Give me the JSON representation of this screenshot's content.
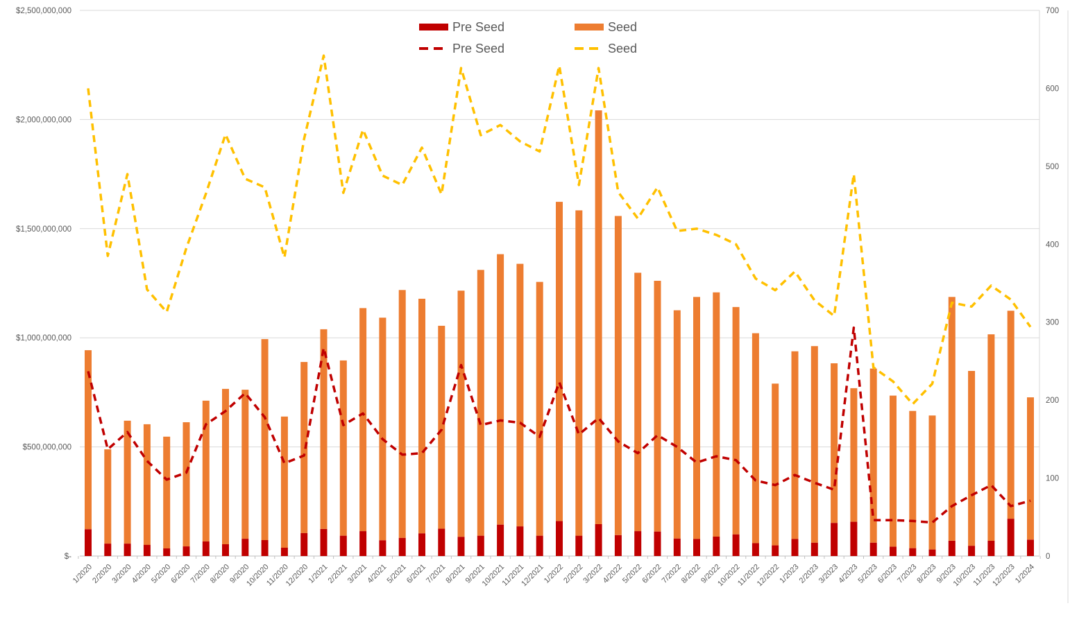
{
  "legend": {
    "items": [
      {
        "label": "Pre Seed",
        "type": "bar",
        "color": "#c00000"
      },
      {
        "label": "Seed",
        "type": "bar",
        "color": "#ed7d31"
      },
      {
        "label": "Pre Seed",
        "type": "line",
        "color": "#c00000"
      },
      {
        "label": "Seed",
        "type": "line",
        "color": "#ffc000"
      }
    ]
  },
  "colors": {
    "grid": "#d9d9d9",
    "axis": "#bfbfbf",
    "text": "#595959",
    "background": "#ffffff"
  },
  "chart_data": {
    "type": "combo",
    "title": "",
    "grid": true,
    "legend_position": "top-center",
    "categories": [
      "1/2020",
      "2/2020",
      "3/2020",
      "4/2020",
      "5/2020",
      "6/2020",
      "7/2020",
      "8/2020",
      "9/2020",
      "10/2020",
      "11/2020",
      "12/2020",
      "1/2021",
      "2/2021",
      "3/2021",
      "4/2021",
      "5/2021",
      "6/2021",
      "7/2021",
      "8/2021",
      "9/2021",
      "10/2021",
      "11/2021",
      "12/2021",
      "1/2022",
      "2/2022",
      "3/2022",
      "4/2022",
      "5/2022",
      "6/2022",
      "7/2022",
      "8/2022",
      "9/2022",
      "10/2022",
      "11/2022",
      "12/2022",
      "1/2023",
      "2/2023",
      "3/2023",
      "4/2023",
      "5/2023",
      "6/2023",
      "7/2023",
      "8/2023",
      "9/2023",
      "10/2023",
      "11/2023",
      "12/2023",
      "1/2024"
    ],
    "left_axis": {
      "unit": "USD",
      "min": 0,
      "max": 2500000000,
      "ticks": [
        {
          "v": 2500,
          "label": "$2,500,000,000"
        },
        {
          "v": 2000,
          "label": "$2,000,000,000"
        },
        {
          "v": 1500,
          "label": "$1,500,000,000"
        },
        {
          "v": 1000,
          "label": "$1,000,000,000"
        },
        {
          "v": 500,
          "label": "$500,000,000"
        },
        {
          "v": 0,
          "label": "$-"
        }
      ]
    },
    "right_axis": {
      "unit": "deal count",
      "min": 0,
      "max": 700,
      "ticks": [
        {
          "v": 700,
          "label": "700"
        },
        {
          "v": 600,
          "label": "600"
        },
        {
          "v": 500,
          "label": "500"
        },
        {
          "v": 400,
          "label": "400"
        },
        {
          "v": 300,
          "label": "300"
        },
        {
          "v": 200,
          "label": "200"
        },
        {
          "v": 100,
          "label": "100"
        },
        {
          "v": 0,
          "label": "0"
        }
      ]
    },
    "series": [
      {
        "name": "Pre Seed",
        "kind": "bar-stacked",
        "axis": "left",
        "unit": "USD millions",
        "color": "#c00000",
        "values": [
          123,
          57,
          57,
          51,
          35,
          44,
          67,
          54,
          79,
          73,
          38,
          105,
          124,
          93,
          114,
          72,
          83,
          104,
          125,
          88,
          93,
          144,
          136,
          93,
          160,
          93,
          146,
          96,
          114,
          112,
          80,
          78,
          89,
          99,
          59,
          49,
          78,
          61,
          152,
          157,
          61,
          43,
          36,
          30,
          70,
          47,
          70,
          171,
          75
        ]
      },
      {
        "name": "Seed",
        "kind": "bar-stacked",
        "axis": "left",
        "unit": "USD millions",
        "color": "#ed7d31",
        "values": [
          820,
          432,
          563,
          553,
          512,
          569,
          645,
          712,
          683,
          921,
          601,
          784,
          915,
          803,
          1022,
          1020,
          1136,
          1075,
          930,
          1128,
          1218,
          1239,
          1203,
          1163,
          1463,
          1491,
          1896,
          1462,
          1184,
          1149,
          1046,
          1109,
          1119,
          1042,
          962,
          741,
          860,
          901,
          731,
          612,
          798,
          692,
          629,
          614,
          1117,
          801,
          946,
          953,
          652
        ]
      },
      {
        "name": "Pre Seed",
        "kind": "line-dashed",
        "axis": "right",
        "unit": "deal count",
        "color": "#c00000",
        "values": [
          237,
          137,
          159,
          122,
          98,
          107,
          169,
          186,
          209,
          178,
          119,
          129,
          267,
          168,
          183,
          150,
          130,
          132,
          162,
          245,
          168,
          174,
          171,
          153,
          223,
          156,
          177,
          147,
          132,
          155,
          140,
          120,
          128,
          123,
          97,
          91,
          104,
          94,
          85,
          293,
          46,
          46,
          45,
          43,
          64,
          78,
          91,
          64,
          71
        ]
      },
      {
        "name": "Seed",
        "kind": "line-dashed",
        "axis": "right",
        "unit": "deal count",
        "color": "#ffc000",
        "values": [
          600,
          385,
          490,
          342,
          313,
          395,
          465,
          541,
          484,
          473,
          383,
          535,
          642,
          466,
          547,
          488,
          476,
          524,
          464,
          626,
          540,
          553,
          532,
          519,
          629,
          476,
          626,
          467,
          433,
          473,
          417,
          420,
          412,
          400,
          356,
          341,
          365,
          328,
          308,
          490,
          242,
          224,
          195,
          221,
          325,
          320,
          347,
          329,
          294
        ]
      }
    ]
  }
}
